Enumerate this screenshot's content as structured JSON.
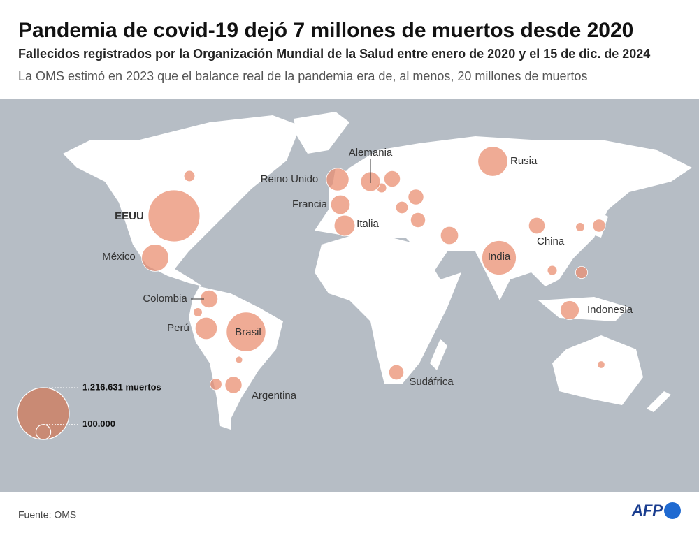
{
  "header": {
    "title": "Pandemia de covid-19 dejó 7 millones de muertos desde 2020",
    "subtitle": "Fallecidos registrados por la Organización Mundial de la Salud entre enero de 2020 y el 15 de dic. de 2024",
    "note": "La OMS estimó en 2023 que el balance real de la pandemia era de, al menos, 20 millones de muertos"
  },
  "legend": [
    {
      "value": 1216631,
      "label": "1.216.631 muertos"
    },
    {
      "value": 100000,
      "label": "100.000"
    }
  ],
  "countries": [
    {
      "name": "EEUU",
      "deaths": 1216631
    },
    {
      "name": "Brasil",
      "deaths": 702000
    },
    {
      "name": "India",
      "deaths": 533000
    },
    {
      "name": "Rusia",
      "deaths": 403000
    },
    {
      "name": "México",
      "deaths": 334000
    },
    {
      "name": "Reino Unido",
      "deaths": 232000
    },
    {
      "name": "Perú",
      "deaths": 220000
    },
    {
      "name": "Italia",
      "deaths": 197000
    },
    {
      "name": "Alemania",
      "deaths": 174000
    },
    {
      "name": "Francia",
      "deaths": 168000
    },
    {
      "name": "Indonesia",
      "deaths": 162000
    },
    {
      "name": "Colombia",
      "deaths": 142000
    },
    {
      "name": "Argentina",
      "deaths": 130000
    },
    {
      "name": "China",
      "deaths": 122000
    },
    {
      "name": "Sudáfrica",
      "deaths": 102000
    }
  ],
  "unlabeled_deaths": [
    55000,
    120000,
    110000,
    145000,
    100000,
    66000,
    75000,
    62000,
    68000,
    22000,
    36000,
    25000,
    36000,
    43000,
    43000
  ],
  "footer": {
    "source": "Fuente: OMS",
    "logo": "AFP"
  }
}
